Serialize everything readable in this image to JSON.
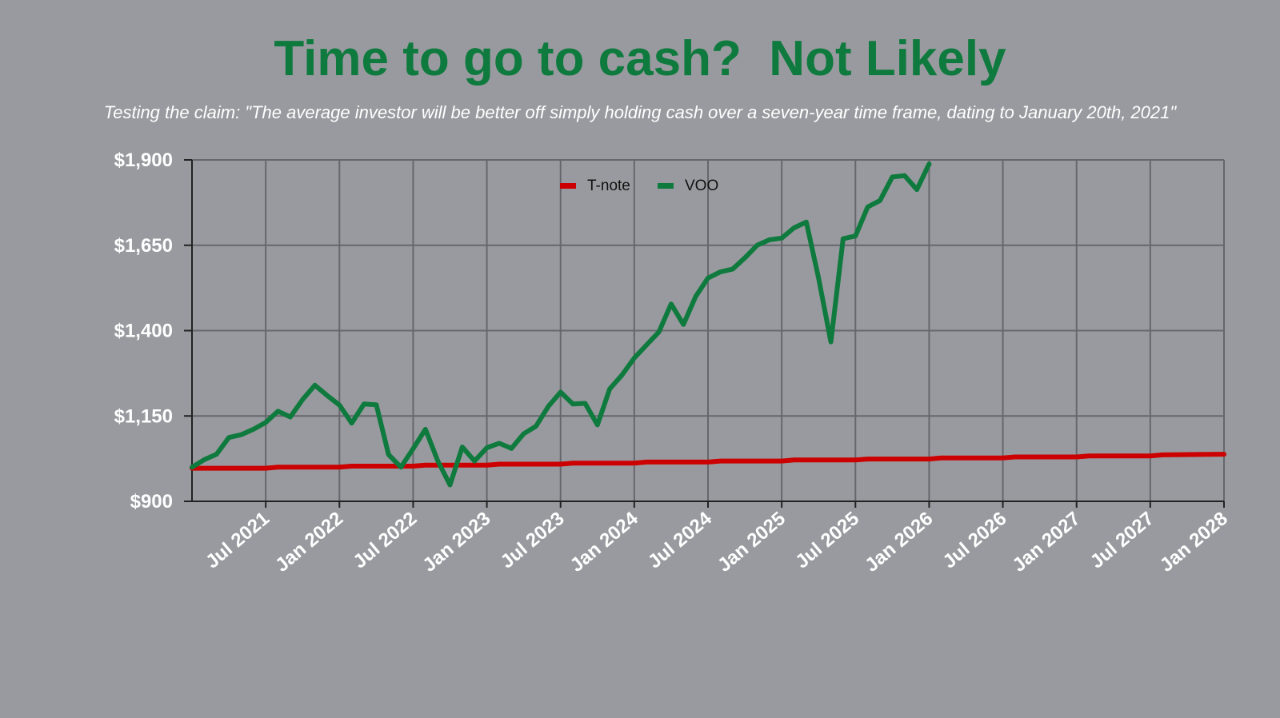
{
  "title": "Time to go to cash?  Not Likely",
  "subtitle": "Testing the claim: \"The average investor will be better off simply holding cash over a seven-year time frame, dating to January 20th, 2021\"",
  "chart_data": {
    "type": "line",
    "title": "Time to go to cash?  Not Likely",
    "subtitle": "Testing the claim: \"The average investor will be better off simply holding cash over a seven-year time frame, dating to January 20th, 2021\"",
    "xlabel": "",
    "ylabel": "",
    "x_start": "2021-01",
    "x_end": "2028-01",
    "ylim": [
      900,
      1900
    ],
    "y_ticks": [
      900,
      1150,
      1400,
      1650,
      1900
    ],
    "y_tick_labels": [
      "$900",
      "$1,150",
      "$1,400",
      "$1,650",
      "$1,900"
    ],
    "x_ticks": [
      "2021-07",
      "2022-01",
      "2022-07",
      "2023-01",
      "2023-07",
      "2024-01",
      "2024-07",
      "2025-01",
      "2025-07",
      "2026-01",
      "2026-07",
      "2027-01",
      "2027-07",
      "2028-01"
    ],
    "x_tick_labels": [
      "Jul  2021",
      "Jan  2022",
      "Jul  2022",
      "Jan  2023",
      "Jul  2023",
      "Jan  2024",
      "Jul  2024",
      "Jan  2025",
      "Jul  2025",
      "Jan  2026",
      "Jul  2026",
      "Jan  2027",
      "Jul  2027",
      "Jan  2028"
    ],
    "grid": true,
    "legend": {
      "position": "top-center",
      "entries": [
        "T-note",
        "VOO"
      ]
    },
    "series": [
      {
        "name": "T-note",
        "color": "#cc0000",
        "x": [
          "2021-01",
          "2021-07",
          "2021-08",
          "2022-01",
          "2022-02",
          "2022-07",
          "2022-08",
          "2023-01",
          "2023-02",
          "2023-07",
          "2023-08",
          "2024-01",
          "2024-02",
          "2024-07",
          "2024-08",
          "2025-01",
          "2025-02",
          "2025-07",
          "2025-08",
          "2026-01",
          "2026-02",
          "2026-07",
          "2026-08",
          "2027-01",
          "2027-02",
          "2027-07",
          "2027-08",
          "2028-01"
        ],
        "values": [
          997,
          997,
          1000,
          1000,
          1003,
          1003,
          1006,
          1006,
          1009,
          1009,
          1012,
          1012,
          1015,
          1015,
          1018,
          1018,
          1021,
          1021,
          1024,
          1024,
          1027,
          1027,
          1030,
          1030,
          1033,
          1033,
          1036,
          1038
        ]
      },
      {
        "name": "VOO",
        "color": "#0f7a3e",
        "x": [
          "2021-01",
          "2021-02",
          "2021-03",
          "2021-04",
          "2021-05",
          "2021-06",
          "2021-07",
          "2021-08",
          "2021-09",
          "2021-10",
          "2021-11",
          "2021-12",
          "2022-01",
          "2022-02",
          "2022-03",
          "2022-04",
          "2022-05",
          "2022-06",
          "2022-07",
          "2022-08",
          "2022-09",
          "2022-10",
          "2022-11",
          "2022-12",
          "2023-01",
          "2023-02",
          "2023-03",
          "2023-04",
          "2023-05",
          "2023-06",
          "2023-07",
          "2023-08",
          "2023-09",
          "2023-10",
          "2023-11",
          "2023-12",
          "2024-01",
          "2024-02",
          "2024-03",
          "2024-04",
          "2024-05",
          "2024-06",
          "2024-07",
          "2024-08",
          "2024-09",
          "2024-10",
          "2024-11",
          "2024-12",
          "2025-01",
          "2025-02",
          "2025-03",
          "2025-04",
          "2025-05",
          "2025-06",
          "2025-07",
          "2025-08",
          "2025-09",
          "2025-10",
          "2025-11",
          "2025-12",
          "2026-01"
        ],
        "values": [
          1000,
          1022,
          1038,
          1087,
          1095,
          1111,
          1131,
          1164,
          1147,
          1198,
          1240,
          1210,
          1182,
          1129,
          1185,
          1183,
          1037,
          1000,
          1054,
          1111,
          1019,
          948,
          1059,
          1018,
          1057,
          1070,
          1055,
          1098,
          1120,
          1178,
          1220,
          1185,
          1187,
          1124,
          1229,
          1270,
          1320,
          1358,
          1396,
          1478,
          1418,
          1500,
          1554,
          1572,
          1580,
          1613,
          1650,
          1666,
          1671,
          1701,
          1718,
          1554,
          1367,
          1669,
          1677,
          1762,
          1781,
          1850,
          1854,
          1813,
          1888
        ]
      }
    ]
  }
}
